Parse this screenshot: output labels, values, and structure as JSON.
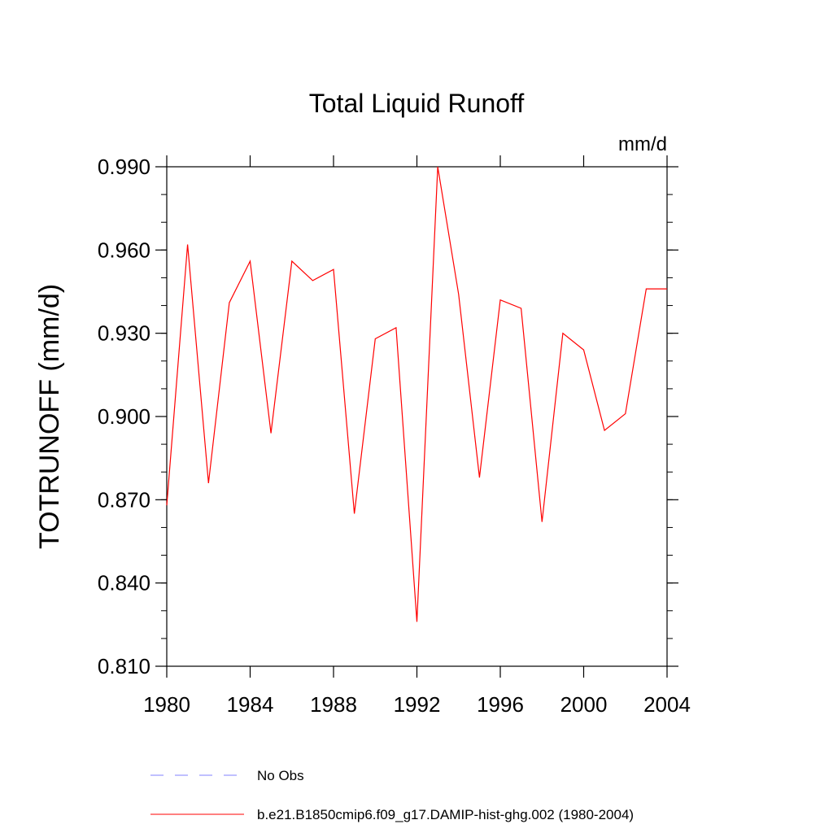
{
  "chart_data": {
    "type": "line",
    "title": "Total Liquid Runoff",
    "units": "mm/d",
    "ylabel": "TOTRUNOFF  (mm/d)",
    "xlabel": "",
    "xlim": [
      1980,
      2004
    ],
    "ylim": [
      0.81,
      0.99
    ],
    "x_ticks": [
      1980,
      1984,
      1988,
      1992,
      1996,
      2000,
      2004
    ],
    "x_tick_labels": [
      "1980",
      "1984",
      "1988",
      "1992",
      "1996",
      "2000",
      "2004"
    ],
    "y_ticks": [
      0.81,
      0.84,
      0.87,
      0.9,
      0.93,
      0.96,
      0.99
    ],
    "y_tick_labels": [
      "0.810",
      "0.840",
      "0.870",
      "0.900",
      "0.930",
      "0.960",
      "0.990"
    ],
    "grid": false,
    "legend_position": "bottom",
    "series": [
      {
        "name": "b.e21.B1850cmip6.f09_g17.DAMIP-hist-ghg.002 (1980-2004)",
        "color": "#ff0000",
        "x": [
          1980,
          1981,
          1982,
          1983,
          1984,
          1985,
          1986,
          1987,
          1988,
          1989,
          1990,
          1991,
          1992,
          1993,
          1994,
          1995,
          1996,
          1997,
          1998,
          1999,
          2000,
          2001,
          2002,
          2003,
          2004
        ],
        "values": [
          0.868,
          0.962,
          0.876,
          0.941,
          0.956,
          0.894,
          0.956,
          0.949,
          0.953,
          0.865,
          0.928,
          0.932,
          0.826,
          0.99,
          0.944,
          0.878,
          0.942,
          0.939,
          0.862,
          0.93,
          0.924,
          0.895,
          0.901,
          0.946,
          0.946
        ]
      }
    ],
    "legend": [
      {
        "label": "No Obs",
        "color": "#8080ff",
        "style": "dashed"
      },
      {
        "label": "b.e21.B1850cmip6.f09_g17.DAMIP-hist-ghg.002 (1980-2004)",
        "color": "#ff0000",
        "style": "solid"
      }
    ]
  }
}
